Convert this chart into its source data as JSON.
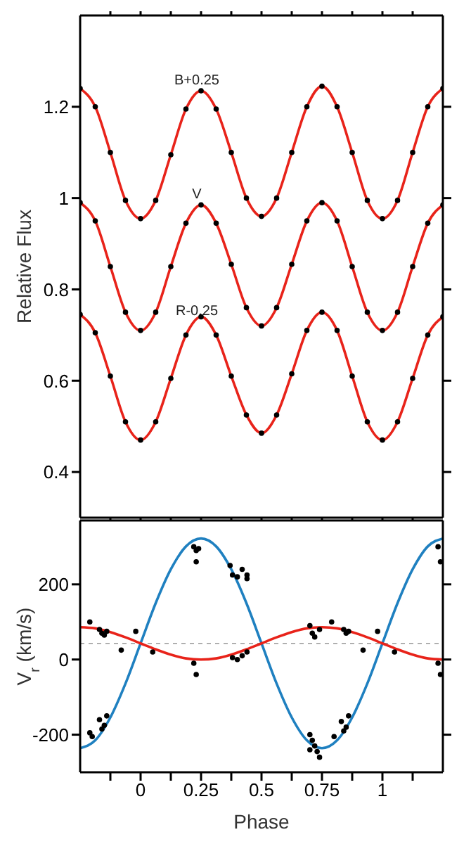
{
  "chart_data": [
    {
      "type": "scatter",
      "ylabel": "Relative Flux",
      "xlim": [
        -0.25,
        1.25
      ],
      "ylim": [
        0.3,
        1.4
      ],
      "yticks": [
        0.4,
        0.6,
        0.8,
        1,
        1.2
      ],
      "xticks": [
        {
          "value": -0.125,
          "label": null
        },
        0,
        {
          "value": 0.125,
          "label": null
        },
        0.25,
        {
          "value": 0.375,
          "label": null
        },
        0.5,
        {
          "value": 0.625,
          "label": null
        },
        0.75,
        {
          "value": 0.875,
          "label": null
        },
        1,
        {
          "value": 1.125,
          "label": null
        }
      ],
      "tick_labels": "y",
      "x": [
        -0.25,
        -0.1875,
        -0.125,
        -0.0625,
        0,
        0.0625,
        0.125,
        0.1875,
        0.25,
        0.3125,
        0.375,
        0.4375,
        0.5,
        0.5625,
        0.625,
        0.6875,
        0.75,
        0.8125,
        0.875,
        0.9375,
        1,
        1.0625,
        1.125,
        1.1875,
        1.25
      ],
      "series": [
        {
          "color": "#000000",
          "values": [
            1.24,
            1.2,
            1.1,
            0.995,
            0.955,
            0.995,
            1.095,
            1.195,
            1.235,
            1.195,
            1.1,
            1.0,
            0.96,
            1.0,
            1.1,
            1.2,
            1.245,
            1.2,
            1.1,
            0.995,
            0.955,
            0.995,
            1.1,
            1.2,
            1.24
          ]
        },
        {
          "type": "line",
          "color": "#e8231a",
          "values": [
            1.24,
            1.2,
            1.1,
            0.995,
            0.955,
            0.995,
            1.095,
            1.195,
            1.235,
            1.195,
            1.1,
            1.0,
            0.96,
            1.0,
            1.1,
            1.2,
            1.245,
            1.2,
            1.1,
            0.995,
            0.955,
            0.995,
            1.1,
            1.2,
            1.24
          ]
        },
        {
          "color": "#000000",
          "values": [
            0.99,
            0.95,
            0.85,
            0.75,
            0.71,
            0.75,
            0.85,
            0.945,
            0.985,
            0.945,
            0.855,
            0.76,
            0.72,
            0.76,
            0.855,
            0.95,
            0.99,
            0.95,
            0.85,
            0.75,
            0.71,
            0.75,
            0.85,
            0.945,
            0.985
          ]
        },
        {
          "type": "line",
          "color": "#e8231a",
          "values": [
            0.99,
            0.95,
            0.85,
            0.75,
            0.71,
            0.75,
            0.85,
            0.945,
            0.985,
            0.945,
            0.855,
            0.76,
            0.72,
            0.76,
            0.855,
            0.95,
            0.99,
            0.95,
            0.85,
            0.75,
            0.71,
            0.75,
            0.85,
            0.945,
            0.985
          ]
        },
        {
          "color": "#000000",
          "values": [
            0.745,
            0.705,
            0.61,
            0.51,
            0.47,
            0.51,
            0.605,
            0.7,
            0.74,
            0.7,
            0.61,
            0.525,
            0.485,
            0.525,
            0.615,
            0.71,
            0.75,
            0.71,
            0.61,
            0.51,
            0.47,
            0.51,
            0.605,
            0.7,
            0.74
          ]
        },
        {
          "type": "line",
          "color": "#e8231a",
          "values": [
            0.745,
            0.705,
            0.61,
            0.51,
            0.47,
            0.51,
            0.605,
            0.7,
            0.74,
            0.7,
            0.61,
            0.525,
            0.485,
            0.525,
            0.615,
            0.71,
            0.75,
            0.71,
            0.61,
            0.51,
            0.47,
            0.51,
            0.605,
            0.7,
            0.74
          ]
        }
      ],
      "annotations": [
        "B+0.25",
        "V",
        "R-0.25"
      ]
    },
    {
      "type": "scatter",
      "xlabel": "Phase",
      "ylabel": "V$_{r}$ (km/s)",
      "xlim": [
        -0.25,
        1.25
      ],
      "ylim": [
        -300,
        370
      ],
      "yticks": [
        -200,
        0,
        200
      ],
      "xticks": [
        {
          "value": -0.125,
          "label": null
        },
        0,
        {
          "value": 0.125,
          "label": null
        },
        0.25,
        {
          "value": 0.375,
          "label": null
        },
        0.5,
        {
          "value": 0.625,
          "label": null
        },
        0.75,
        {
          "value": 0.875,
          "label": null
        },
        1,
        {
          "value": 1.125,
          "label": null
        }
      ],
      "x": [
        -0.25,
        -0.1875,
        -0.125,
        -0.0625,
        0,
        0.0625,
        0.125,
        0.1875,
        0.25,
        0.3125,
        0.375,
        0.4375,
        0.5,
        0.5625,
        0.625,
        0.6875,
        0.75,
        0.8125,
        0.875,
        0.9375,
        1,
        1.0625,
        1.125,
        1.1875,
        1.25
      ],
      "series": [
        {
          "type": "line",
          "color": "#1f80c0",
          "values": [
            -236,
            -215,
            -154,
            -64,
            43,
            150,
            240,
            301,
            322,
            301,
            240,
            150,
            43,
            -64,
            -154,
            -215,
            -236,
            -215,
            -154,
            -64,
            43,
            150,
            240,
            301,
            322
          ]
        },
        {
          "type": "line",
          "color": "#e8231a",
          "values": [
            86,
            83,
            73,
            59,
            43,
            27,
            13,
            3,
            0,
            3,
            13,
            27,
            43,
            59,
            73,
            83,
            86,
            83,
            73,
            59,
            43,
            27,
            13,
            3,
            0
          ]
        },
        {
          "color": "#000000",
          "x": [
            -0.2,
            -0.21,
            -0.16,
            -0.15,
            -0.14,
            -0.17,
            0.22,
            0.23,
            0.24,
            0.23,
            0.37,
            0.38,
            0.4,
            0.42,
            0.44,
            0.44,
            0.7,
            0.71,
            0.72,
            0.73,
            0.74,
            0.7,
            0.8,
            0.84,
            0.85,
            0.86,
            0.83,
            1.23,
            1.24
          ],
          "values": [
            -205,
            -195,
            -185,
            -175,
            -150,
            -160,
            300,
            290,
            295,
            260,
            250,
            225,
            220,
            240,
            215,
            225,
            -200,
            -215,
            -230,
            -245,
            -260,
            -240,
            -205,
            -190,
            -180,
            -150,
            -165,
            300,
            260
          ]
        },
        {
          "color": "#000000",
          "x": [
            -0.21,
            -0.17,
            -0.16,
            -0.14,
            -0.15,
            -0.08,
            -0.02,
            0.05,
            0.22,
            0.23,
            0.38,
            0.4,
            0.42,
            0.44,
            0.7,
            0.71,
            0.72,
            0.74,
            0.79,
            0.84,
            0.85,
            0.86,
            0.92,
            0.98,
            1.05,
            1.23,
            1.24
          ],
          "values": [
            100,
            80,
            70,
            75,
            65,
            25,
            75,
            20,
            -10,
            -40,
            5,
            0,
            10,
            20,
            90,
            70,
            60,
            80,
            100,
            80,
            70,
            75,
            25,
            75,
            20,
            -10,
            -40
          ]
        }
      ],
      "ref_lines": [
        {
          "axis": "y",
          "value": 43,
          "color": "#999999",
          "line_style": "dashed"
        }
      ]
    }
  ]
}
